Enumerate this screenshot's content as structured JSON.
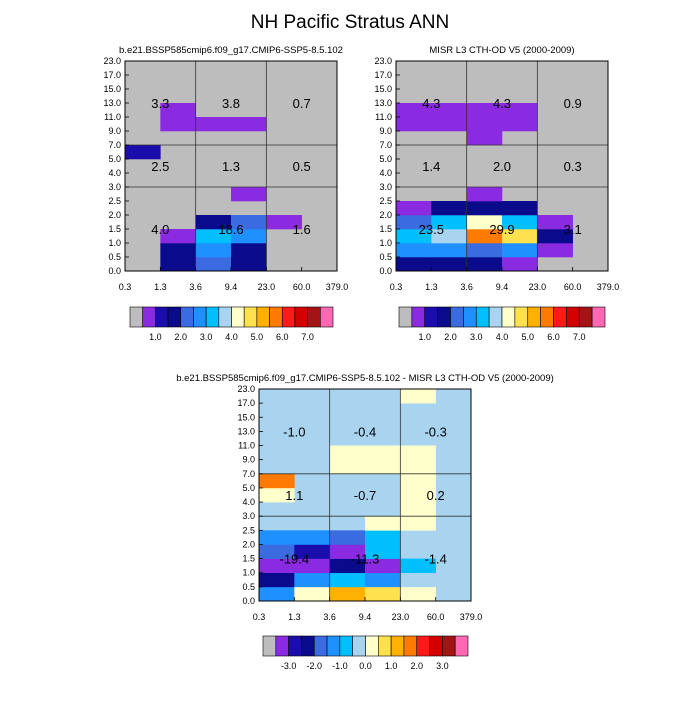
{
  "title": "NH Pacific Stratus ANN",
  "colors": {
    "missing": "#bdbdbd",
    "p1": "#8a2be2",
    "p2": "#1a0dab",
    "p3": "#0a0a8c",
    "p4": "#3a6be0",
    "p5": "#1e90ff",
    "p6": "#00bfff",
    "p7": "#a8d4f0",
    "p8": "#ffffcc",
    "p9": "#ffe14d",
    "p10": "#ffb000",
    "p11": "#ff7a00",
    "p12": "#ff1a1a",
    "p13": "#d40000",
    "p14": "#a31515",
    "p15": "#ff69b4"
  },
  "chart_data": [
    {
      "type": "heatmap",
      "title": "b.e21.BSSP585cmip6.f09_g17.CMIP6-SSP5-8.5.102",
      "x_ticks": [
        "0.3",
        "1.3",
        "3.6",
        "9.4",
        "23.0",
        "60.0",
        "379.0"
      ],
      "y_ticks": [
        "0.0",
        "0.5",
        "1.0",
        "1.5",
        "2.0",
        "2.5",
        "3.0",
        "4.0",
        "5.0",
        "7.0",
        "9.0",
        "11.0",
        "13.0",
        "15.0",
        "17.0",
        "23.0"
      ],
      "y_major_breaks": [
        6,
        9
      ],
      "x_major_breaks": [
        2,
        4
      ],
      "background_color": "missing",
      "cells": [
        {
          "x": 1,
          "y": 0,
          "c": "p3"
        },
        {
          "x": 2,
          "y": 0,
          "c": "p4"
        },
        {
          "x": 3,
          "y": 0,
          "c": "p3"
        },
        {
          "x": 1,
          "y": 1,
          "c": "p3"
        },
        {
          "x": 2,
          "y": 1,
          "c": "p5"
        },
        {
          "x": 3,
          "y": 1,
          "c": "p3"
        },
        {
          "x": 1,
          "y": 2,
          "c": "p1"
        },
        {
          "x": 2,
          "y": 2,
          "c": "p6"
        },
        {
          "x": 3,
          "y": 2,
          "c": "p5"
        },
        {
          "x": 2,
          "y": 3,
          "c": "p3"
        },
        {
          "x": 3,
          "y": 3,
          "c": "p4"
        },
        {
          "x": 4,
          "y": 3,
          "c": "p1"
        },
        {
          "x": 3,
          "y": 5,
          "c": "p1"
        },
        {
          "x": 0,
          "y": 8,
          "c": "p2"
        },
        {
          "x": 2,
          "y": 10,
          "c": "p1"
        },
        {
          "x": 3,
          "y": 10,
          "c": "p1"
        },
        {
          "x": 1,
          "y": 11,
          "c": "p1"
        },
        {
          "x": 1,
          "y": 10,
          "c": "p1"
        }
      ],
      "box_values": [
        [
          "4.0",
          "18.6",
          "1.6"
        ],
        [
          "2.5",
          "1.3",
          "0.5"
        ],
        [
          "3.3",
          "3.8",
          "0.7"
        ]
      ],
      "colorbar": {
        "colors": [
          "missing",
          "p1",
          "p2",
          "p3",
          "p4",
          "p5",
          "p6",
          "p7",
          "p8",
          "p9",
          "p10",
          "p11",
          "p12",
          "p13",
          "p14",
          "p15"
        ],
        "labels": [
          "1.0",
          "2.0",
          "3.0",
          "4.0",
          "5.0",
          "6.0",
          "7.0"
        ],
        "label_after_box": [
          2,
          4,
          6,
          8,
          10,
          12,
          14
        ]
      }
    },
    {
      "type": "heatmap",
      "title": "MISR L3 CTH-OD V5 (2000-2009)",
      "x_ticks": [
        "0.3",
        "1.3",
        "3.6",
        "9.4",
        "23.0",
        "60.0",
        "379.0"
      ],
      "y_ticks": [
        "0.0",
        "0.5",
        "1.0",
        "1.5",
        "2.0",
        "2.5",
        "3.0",
        "4.0",
        "5.0",
        "7.0",
        "9.0",
        "11.0",
        "13.0",
        "15.0",
        "17.0",
        "23.0"
      ],
      "y_major_breaks": [
        6,
        9
      ],
      "x_major_breaks": [
        2,
        4
      ],
      "background_color": "missing",
      "cells": [
        {
          "x": 0,
          "y": 0,
          "c": "p3"
        },
        {
          "x": 1,
          "y": 0,
          "c": "p3"
        },
        {
          "x": 2,
          "y": 0,
          "c": "p3"
        },
        {
          "x": 3,
          "y": 0,
          "c": "p1"
        },
        {
          "x": 0,
          "y": 1,
          "c": "p5"
        },
        {
          "x": 1,
          "y": 1,
          "c": "p5"
        },
        {
          "x": 2,
          "y": 1,
          "c": "p4"
        },
        {
          "x": 3,
          "y": 1,
          "c": "p5"
        },
        {
          "x": 4,
          "y": 1,
          "c": "p1"
        },
        {
          "x": 0,
          "y": 2,
          "c": "p6"
        },
        {
          "x": 1,
          "y": 2,
          "c": "p7"
        },
        {
          "x": 2,
          "y": 2,
          "c": "p11"
        },
        {
          "x": 3,
          "y": 2,
          "c": "p9"
        },
        {
          "x": 4,
          "y": 2,
          "c": "p3"
        },
        {
          "x": 0,
          "y": 3,
          "c": "p4"
        },
        {
          "x": 1,
          "y": 3,
          "c": "p6"
        },
        {
          "x": 2,
          "y": 3,
          "c": "p8"
        },
        {
          "x": 3,
          "y": 3,
          "c": "p6"
        },
        {
          "x": 4,
          "y": 3,
          "c": "p1"
        },
        {
          "x": 0,
          "y": 4,
          "c": "p1"
        },
        {
          "x": 1,
          "y": 4,
          "c": "p3"
        },
        {
          "x": 2,
          "y": 4,
          "c": "p3"
        },
        {
          "x": 3,
          "y": 4,
          "c": "p3"
        },
        {
          "x": 2,
          "y": 5,
          "c": "p1"
        },
        {
          "x": 2,
          "y": 9,
          "c": "p1"
        },
        {
          "x": 0,
          "y": 10,
          "c": "p1"
        },
        {
          "x": 1,
          "y": 10,
          "c": "p1"
        },
        {
          "x": 2,
          "y": 10,
          "c": "p1"
        },
        {
          "x": 3,
          "y": 10,
          "c": "p1"
        },
        {
          "x": 0,
          "y": 11,
          "c": "p1"
        },
        {
          "x": 1,
          "y": 11,
          "c": "p1"
        },
        {
          "x": 2,
          "y": 11,
          "c": "p1"
        },
        {
          "x": 3,
          "y": 11,
          "c": "p1"
        }
      ],
      "box_values": [
        [
          "23.5",
          "29.9",
          "3.1"
        ],
        [
          "1.4",
          "2.0",
          "0.3"
        ],
        [
          "4.3",
          "4.3",
          "0.9"
        ]
      ],
      "colorbar": {
        "colors": [
          "missing",
          "p1",
          "p2",
          "p3",
          "p4",
          "p5",
          "p6",
          "p7",
          "p8",
          "p9",
          "p10",
          "p11",
          "p12",
          "p13",
          "p14",
          "p15"
        ],
        "labels": [
          "1.0",
          "2.0",
          "3.0",
          "4.0",
          "5.0",
          "6.0",
          "7.0"
        ],
        "label_after_box": [
          2,
          4,
          6,
          8,
          10,
          12,
          14
        ]
      }
    },
    {
      "type": "heatmap",
      "title": "b.e21.BSSP585cmip6.f09_g17.CMIP6-SSP5-8.5.102 - MISR L3 CTH-OD V5 (2000-2009)",
      "x_ticks": [
        "0.3",
        "1.3",
        "3.6",
        "9.4",
        "23.0",
        "60.0",
        "379.0"
      ],
      "y_ticks": [
        "0.0",
        "0.5",
        "1.0",
        "1.5",
        "2.0",
        "2.5",
        "3.0",
        "4.0",
        "5.0",
        "7.0",
        "9.0",
        "11.0",
        "13.0",
        "15.0",
        "17.0",
        "23.0"
      ],
      "y_major_breaks": [
        6,
        9
      ],
      "x_major_breaks": [
        2,
        4
      ],
      "background_color": "p7",
      "cells": [
        {
          "x": 0,
          "y": 0,
          "c": "p5"
        },
        {
          "x": 1,
          "y": 0,
          "c": "p8"
        },
        {
          "x": 2,
          "y": 0,
          "c": "p10"
        },
        {
          "x": 3,
          "y": 0,
          "c": "p9"
        },
        {
          "x": 4,
          "y": 0,
          "c": "p8"
        },
        {
          "x": 0,
          "y": 1,
          "c": "p3"
        },
        {
          "x": 1,
          "y": 1,
          "c": "p5"
        },
        {
          "x": 2,
          "y": 1,
          "c": "p6"
        },
        {
          "x": 3,
          "y": 1,
          "c": "p5"
        },
        {
          "x": 4,
          "y": 1,
          "c": "p7"
        },
        {
          "x": 0,
          "y": 2,
          "c": "p1"
        },
        {
          "x": 1,
          "y": 2,
          "c": "p1"
        },
        {
          "x": 2,
          "y": 2,
          "c": "p3"
        },
        {
          "x": 3,
          "y": 2,
          "c": "p1"
        },
        {
          "x": 4,
          "y": 2,
          "c": "p6"
        },
        {
          "x": 0,
          "y": 3,
          "c": "p4"
        },
        {
          "x": 1,
          "y": 3,
          "c": "p2"
        },
        {
          "x": 2,
          "y": 3,
          "c": "p1"
        },
        {
          "x": 3,
          "y": 3,
          "c": "p6"
        },
        {
          "x": 0,
          "y": 4,
          "c": "p5"
        },
        {
          "x": 1,
          "y": 4,
          "c": "p5"
        },
        {
          "x": 2,
          "y": 4,
          "c": "p4"
        },
        {
          "x": 3,
          "y": 4,
          "c": "p6"
        },
        {
          "x": 3,
          "y": 5,
          "c": "p8"
        },
        {
          "x": 4,
          "y": 5,
          "c": "p8"
        },
        {
          "x": 4,
          "y": 6,
          "c": "p8"
        },
        {
          "x": 0,
          "y": 7,
          "c": "p8"
        },
        {
          "x": 4,
          "y": 7,
          "c": "p8"
        },
        {
          "x": 0,
          "y": 8,
          "c": "p11"
        },
        {
          "x": 4,
          "y": 8,
          "c": "p8"
        },
        {
          "x": 2,
          "y": 9,
          "c": "p8"
        },
        {
          "x": 3,
          "y": 9,
          "c": "p8"
        },
        {
          "x": 4,
          "y": 9,
          "c": "p8"
        },
        {
          "x": 2,
          "y": 10,
          "c": "p8"
        },
        {
          "x": 3,
          "y": 10,
          "c": "p8"
        },
        {
          "x": 4,
          "y": 10,
          "c": "p8"
        },
        {
          "x": 4,
          "y": 14,
          "c": "p8"
        }
      ],
      "box_values": [
        [
          "-19.4",
          "-11.3",
          "-1.4"
        ],
        [
          "1.1",
          "-0.7",
          "0.2"
        ],
        [
          "-1.0",
          "-0.4",
          "-0.3"
        ]
      ],
      "colorbar": {
        "colors": [
          "missing",
          "p1",
          "p2",
          "p3",
          "p4",
          "p5",
          "p6",
          "p7",
          "p8",
          "p9",
          "p10",
          "p11",
          "p12",
          "p13",
          "p14",
          "p15"
        ],
        "labels": [
          "-3.0",
          "-2.0",
          "-1.0",
          "0.0",
          "1.0",
          "2.0",
          "3.0"
        ],
        "label_after_box": [
          2,
          4,
          6,
          8,
          10,
          12,
          14
        ]
      }
    }
  ]
}
